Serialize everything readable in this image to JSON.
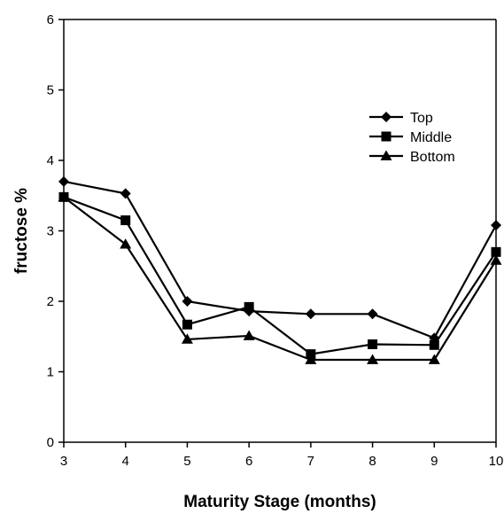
{
  "chart_data": {
    "type": "line",
    "title": "",
    "xlabel": "Maturity Stage (months)",
    "ylabel": "fructose %",
    "x": [
      3,
      4,
      5,
      6,
      7,
      8,
      9,
      10
    ],
    "xlim": [
      3,
      10
    ],
    "ylim": [
      0,
      6
    ],
    "xticks": [
      "3",
      "4",
      "5",
      "6",
      "7",
      "8",
      "9",
      "10"
    ],
    "yticks": [
      "0",
      "1",
      "2",
      "3",
      "4",
      "5",
      "6"
    ],
    "grid": false,
    "legend_position": "upper-right",
    "series": [
      {
        "name": "Top",
        "marker": "diamond",
        "values": [
          3.7,
          3.53,
          2.0,
          1.86,
          1.82,
          1.82,
          1.48,
          3.08
        ]
      },
      {
        "name": "Middle",
        "marker": "square",
        "values": [
          3.48,
          3.15,
          1.67,
          1.92,
          1.25,
          1.39,
          1.38,
          2.7
        ]
      },
      {
        "name": "Bottom",
        "marker": "triangle",
        "values": [
          3.48,
          2.81,
          1.46,
          1.51,
          1.17,
          1.17,
          1.17,
          2.58
        ]
      }
    ],
    "colors": {
      "line": "#000000",
      "marker": "#000000"
    }
  }
}
